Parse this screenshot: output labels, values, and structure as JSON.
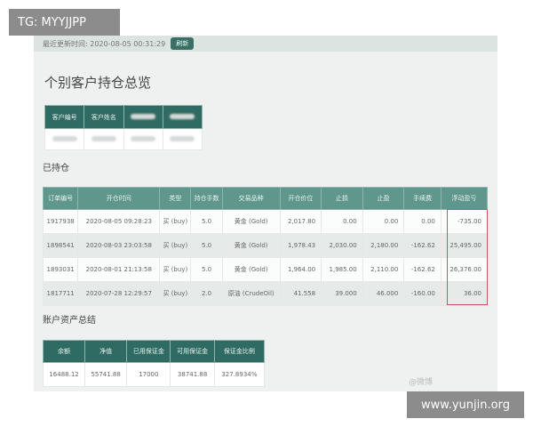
{
  "overlay": {
    "tg_label": "TG: MYYJJPP",
    "watermark": "www.yunjin.org",
    "weibo_watermark": "@微博"
  },
  "topbar": {
    "update_time": "最近更新时间: 2020-08-05 00:31:29",
    "refresh_label": "刷新"
  },
  "title": "个别客户持仓总览",
  "customer": {
    "headers": [
      "客户编号",
      "客户姓名",
      "",
      ""
    ]
  },
  "positions": {
    "section_title": "已持仓",
    "headers": [
      "订单编号",
      "开仓时间",
      "类型",
      "持仓手数",
      "交易品种",
      "开仓价位",
      "止损",
      "止盈",
      "手续费",
      "浮动盈亏"
    ],
    "rows": [
      [
        "1917938",
        "2020-08-05 09:28:23",
        "买 (buy)",
        "5.0",
        "黄金 (Gold)",
        "2,017.80",
        "0.00",
        "0.00",
        "0.00",
        "-735.00"
      ],
      [
        "1898541",
        "2020-08-03 23:03:58",
        "买 (buy)",
        "5.0",
        "黄金 (Gold)",
        "1,978.43",
        "2,030.00",
        "2,180.00",
        "-162.62",
        "25,495.00"
      ],
      [
        "1893031",
        "2020-08-01 21:13:58",
        "买 (buy)",
        "5.0",
        "黄金 (Gold)",
        "1,964.00",
        "1,985.00",
        "2,110.00",
        "-162.62",
        "26,376.00"
      ],
      [
        "1817711",
        "2020-07-28 12:29:57",
        "买 (buy)",
        "2.0",
        "原油 (CrudeOil)",
        "41.558",
        "39.000",
        "46.000",
        "-160.00",
        "36.00"
      ]
    ]
  },
  "account": {
    "section_title": "账户资产总结",
    "headers": [
      "余额",
      "净值",
      "已用保证金",
      "可用保证金",
      "保证金比例"
    ],
    "values": [
      "16488.12",
      "55741.88",
      "17000",
      "38741.88",
      "327.8934%"
    ]
  },
  "colors": {
    "header_dark": "#2f6b62",
    "header_mid": "#5f978c",
    "highlight_box": "#c0585c"
  }
}
